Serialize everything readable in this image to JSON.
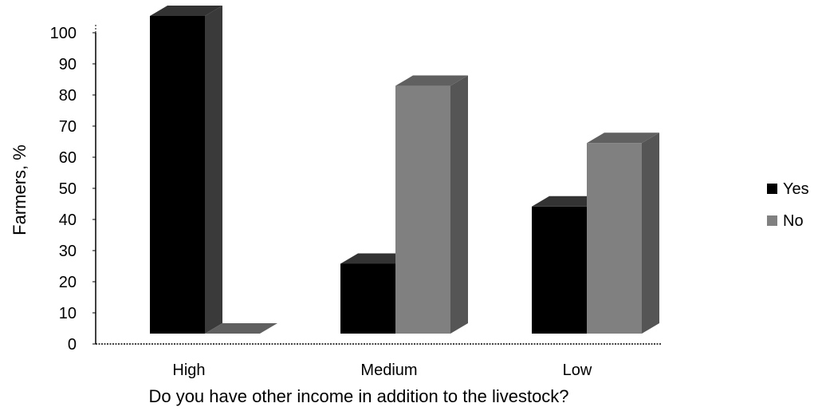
{
  "chart_data": {
    "type": "bar",
    "style": "3d-clustered-column",
    "title": "",
    "xlabel": "Do you have other income in addition to the livestock?",
    "ylabel": "Farmers, %",
    "categories": [
      "High",
      "Medium",
      "Low"
    ],
    "series": [
      {
        "name": "Yes",
        "values": [
          100,
          22,
          40
        ],
        "color": "#000000",
        "side_color": "#3a3a3a",
        "top_color": "#333333"
      },
      {
        "name": "No",
        "values": [
          0,
          78,
          60
        ],
        "color": "#808080",
        "side_color": "#555555",
        "top_color": "#606060"
      }
    ],
    "ylim": [
      0,
      100
    ],
    "yticks": [
      "0",
      "10",
      "20",
      "30",
      "40",
      "50",
      "60",
      "70",
      "80",
      "90",
      "100"
    ],
    "grid": false,
    "legend_position": "right"
  }
}
